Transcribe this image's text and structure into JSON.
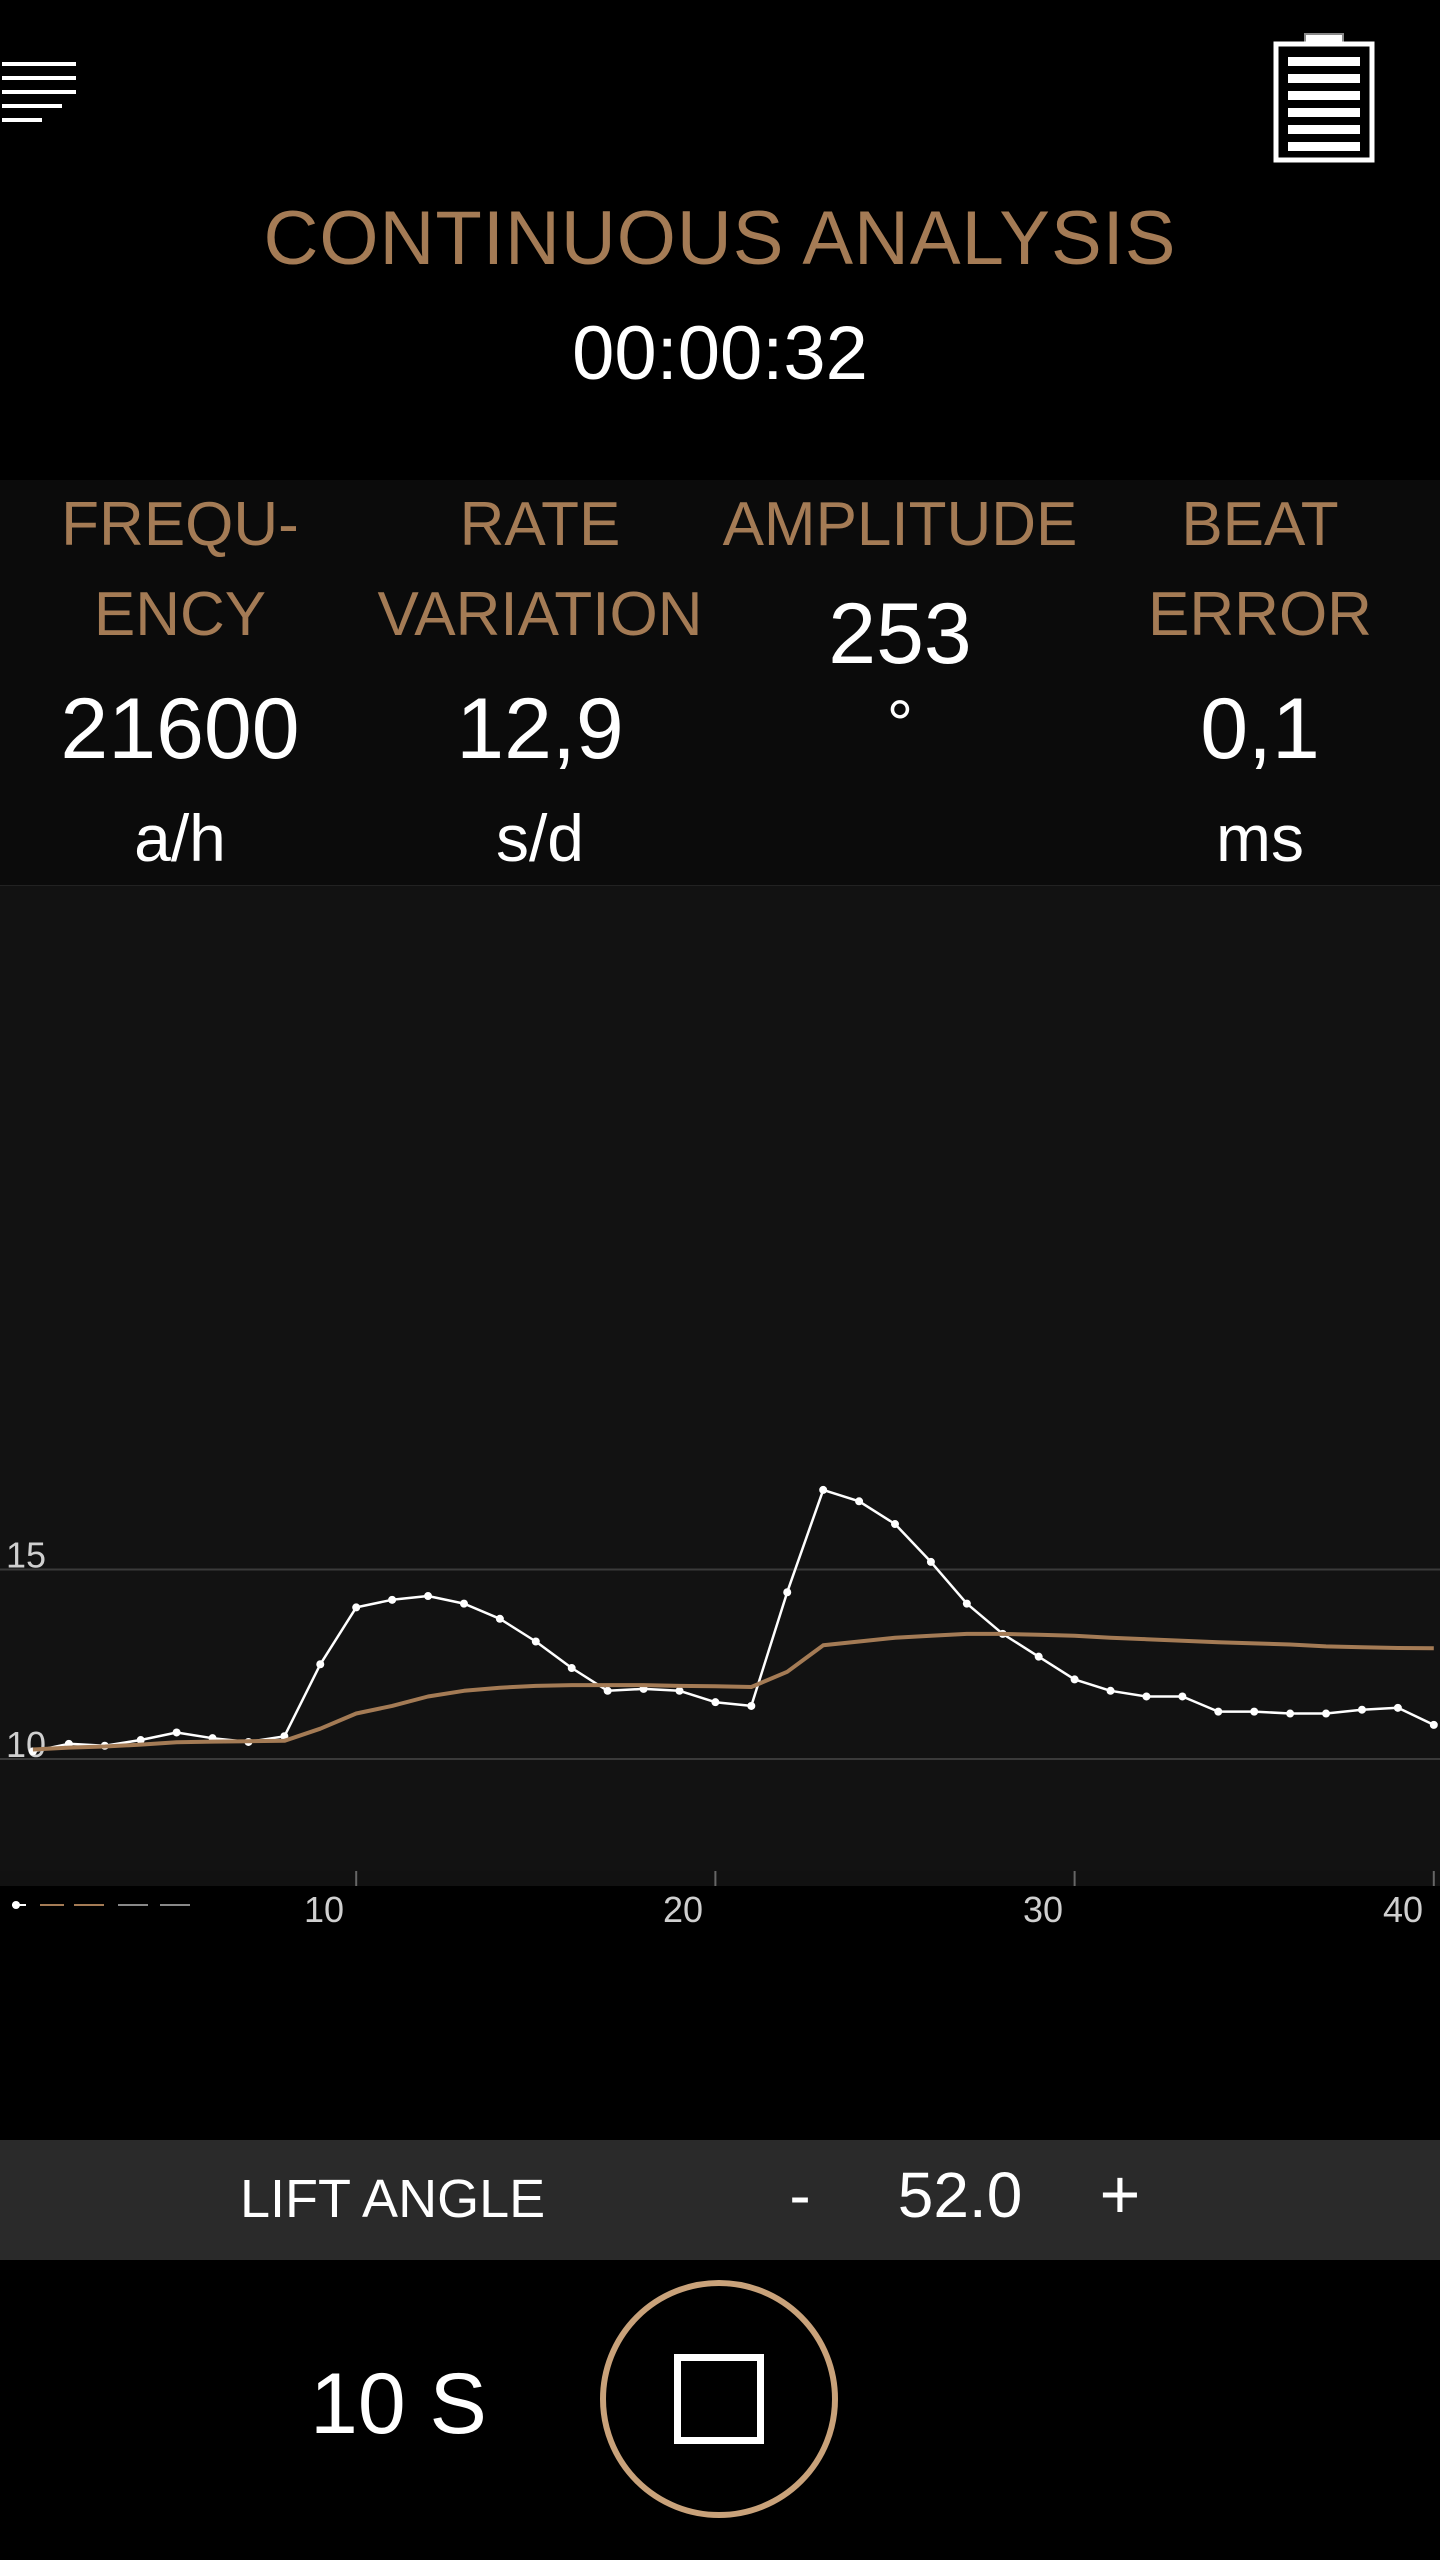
{
  "header": {
    "menu_icon": "hamburger-menu-icon",
    "battery_icon": "battery-icon",
    "title": "CONTINUOUS ANALYSIS",
    "timer": "00:00:32"
  },
  "metrics": [
    {
      "label": "FREQU-\nENCY",
      "value": "21600",
      "unit": "a/h"
    },
    {
      "label": "RATE\nVARIATION",
      "value": "12,9",
      "unit": "s/d"
    },
    {
      "label": "AMPLITUDE",
      "value": "253",
      "unit": "°"
    },
    {
      "label": "BEAT\nERROR",
      "value": "0,1",
      "unit": "ms"
    }
  ],
  "colors": {
    "accent": "#a47b55",
    "background": "#000000",
    "chart_bg": "#111111",
    "raw_series": "#ffffff",
    "avg_series": "#a47b55",
    "stop_ring": "#c9a27a"
  },
  "chart_data": {
    "type": "line",
    "y_tick_labels": [
      "15",
      "10"
    ],
    "x_tick_labels": [
      "10",
      "20",
      "30",
      "40"
    ],
    "xlim": [
      1,
      40
    ],
    "ylim": [
      7.0,
      17.8
    ],
    "grid": "horizontal",
    "series": [
      {
        "role": "raw",
        "color": "#ffffff",
        "x": [
          1,
          2,
          3,
          4,
          5,
          6,
          7,
          8,
          9,
          10,
          11,
          12,
          13,
          14,
          15,
          16,
          17,
          18,
          19,
          20,
          21,
          22,
          23,
          24,
          25,
          26,
          27,
          28,
          29,
          30,
          31,
          32,
          33,
          34,
          35,
          36,
          37,
          38,
          39,
          40
        ],
        "y": [
          10.2,
          10.4,
          10.35,
          10.5,
          10.7,
          10.55,
          10.45,
          10.6,
          12.5,
          14.0,
          14.2,
          14.3,
          14.1,
          13.7,
          13.1,
          12.4,
          11.8,
          11.85,
          11.8,
          11.5,
          11.4,
          14.4,
          17.1,
          16.8,
          16.2,
          15.2,
          14.1,
          13.3,
          12.7,
          12.1,
          11.8,
          11.65,
          11.65,
          11.25,
          11.25,
          11.2,
          11.2,
          11.3,
          11.35,
          10.9
        ]
      },
      {
        "role": "average",
        "color": "#a47b55",
        "x": [
          1,
          2,
          3,
          4,
          5,
          6,
          7,
          8,
          9,
          10,
          11,
          12,
          13,
          14,
          15,
          16,
          17,
          18,
          19,
          20,
          21,
          22,
          23,
          24,
          25,
          26,
          27,
          28,
          29,
          30,
          31,
          32,
          33,
          34,
          35,
          36,
          37,
          38,
          39,
          40
        ],
        "y": [
          10.25,
          10.3,
          10.33,
          10.38,
          10.44,
          10.46,
          10.47,
          10.48,
          10.8,
          11.2,
          11.4,
          11.65,
          11.8,
          11.88,
          11.93,
          11.95,
          11.95,
          11.95,
          11.93,
          11.92,
          11.9,
          12.3,
          13.0,
          13.1,
          13.2,
          13.25,
          13.3,
          13.3,
          13.28,
          13.25,
          13.2,
          13.16,
          13.12,
          13.08,
          13.05,
          13.02,
          12.97,
          12.95,
          12.93,
          12.92
        ]
      }
    ]
  },
  "lift_angle": {
    "label": "LIFT ANGLE",
    "minus": "-",
    "value": "52.0",
    "plus": "+"
  },
  "controls": {
    "duration": "10 S",
    "stop_icon": "stop-square-icon"
  }
}
